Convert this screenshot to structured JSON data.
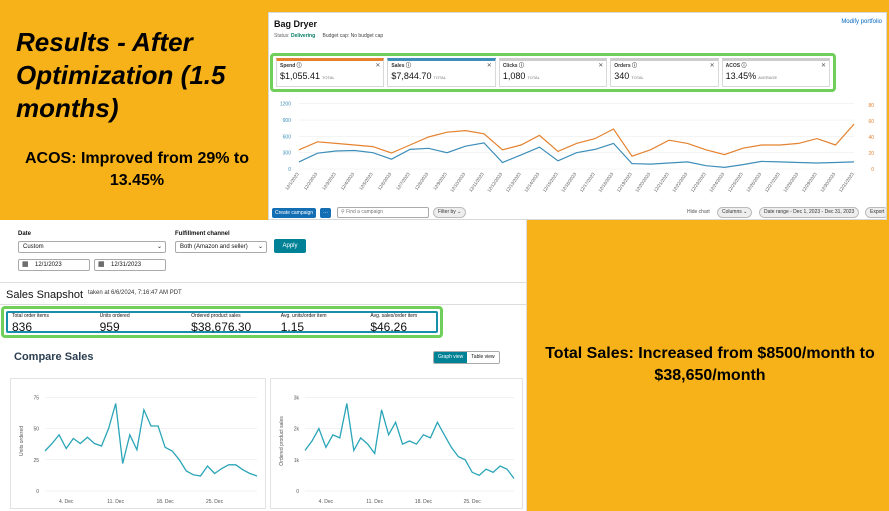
{
  "slide": {
    "headline": "Results - After Optimization (1.5 months)",
    "acos_note": "ACOS: Improved from 29% to 13.45%",
    "sales_note": "Total Sales: Increased from $8500/month to $38,650/month"
  },
  "ads": {
    "title": "Bag Dryer",
    "status_label": "Status:",
    "status_value": "Delivering",
    "budget_cap": "Budget cap: No budget cap",
    "modify_link": "Modify portfolio",
    "metrics": [
      {
        "label": "Spend ⓘ",
        "value": "$1,055.41",
        "sub": "TOTAL",
        "color": "#e4822f"
      },
      {
        "label": "Sales ⓘ",
        "value": "$7,844.70",
        "sub": "TOTAL",
        "color": "#3d8eb9"
      },
      {
        "label": "Clicks ⓘ",
        "value": "1,080",
        "sub": "TOTAL",
        "color": "#cccccc"
      },
      {
        "label": "Orders ⓘ",
        "value": "340",
        "sub": "TOTAL",
        "color": "#cccccc"
      },
      {
        "label": "ACOS ⓘ",
        "value": "13.45%",
        "sub": "AVERAGE",
        "color": "#cccccc"
      }
    ],
    "toolbar": {
      "create_label": "Create campaign",
      "more_label": "···",
      "find_placeholder": "Find a campaign",
      "filter_label": "Filter by ⌄",
      "hide_chart": "Hide chart",
      "columns_label": "Columns ⌄",
      "date_range_label": "Date range - Dec 1, 2023 - Dec 31, 2023",
      "export_label": "Export"
    }
  },
  "dash": {
    "date_label": "Date",
    "date_value": "Custom",
    "fulfillment_label": "Fulfillment channel",
    "fulfillment_value": "Both (Amazon and seller)",
    "start_date": "12/1/2023",
    "end_date": "12/31/2023",
    "apply_label": "Apply",
    "snapshot_title": "Sales Snapshot",
    "snapshot_time": "taken at 6/6/2024, 7:16:47 AM PDT",
    "snapshot": [
      {
        "label": "Total order items",
        "value": "836"
      },
      {
        "label": "Units ordered",
        "value": "959"
      },
      {
        "label": "Ordered product sales",
        "value": "$38,676.30"
      },
      {
        "label": "Avg. units/order item",
        "value": "1.15"
      },
      {
        "label": "Avg. sales/order item",
        "value": "$46.26"
      }
    ],
    "compare_title": "Compare Sales",
    "graph_view": "Graph view",
    "table_view": "Table view"
  },
  "chart_data": [
    {
      "type": "line",
      "x": [
        "12/1/2023",
        "12/2/2023",
        "12/3/2023",
        "12/4/2023",
        "12/5/2023",
        "12/6/2023",
        "12/7/2023",
        "12/8/2023",
        "12/9/2023",
        "12/10/2023",
        "12/11/2023",
        "12/12/2023",
        "12/13/2023",
        "12/14/2023",
        "12/15/2023",
        "12/16/2023",
        "12/17/2023",
        "12/18/2023",
        "12/19/2023",
        "12/20/2023",
        "12/21/2023",
        "12/22/2023",
        "12/23/2023",
        "12/24/2023",
        "12/25/2023",
        "12/26/2023",
        "12/27/2023",
        "12/28/2023",
        "12/29/2023",
        "12/30/2023",
        "12/31/2023"
      ],
      "xtick_labels": [
        "12/1/2023",
        "12/2/2023",
        "12/3/2023",
        "12/4/2023",
        "12/5/2023",
        "12/6/2023",
        "12/7/2023",
        "12/8/2023",
        "12/9/2023",
        "12/10/2023",
        "12/11/2023",
        "12/12/2023",
        "12/13/2023",
        "12/14/2023",
        "12/15/2023",
        "12/16/2023",
        "12/17/2023",
        "12/18/2023",
        "12/19/2023",
        "12/20/2023",
        "12/21/2023",
        "12/22/2023",
        "12/23/2023",
        "12/24/2023",
        "12/25/2023",
        "12/26/2023",
        "12/27/2023",
        "12/28/2023",
        "12/29/2023",
        "12/30/2023",
        "12/31/2023"
      ],
      "series": [
        {
          "axis": "left",
          "color": "#3d8eb9",
          "values": [
            130,
            290,
            330,
            340,
            300,
            180,
            360,
            380,
            300,
            420,
            480,
            120,
            260,
            400,
            150,
            300,
            360,
            470,
            100,
            90,
            110,
            130,
            60,
            30,
            80,
            140,
            130,
            120,
            110,
            120,
            130
          ]
        },
        {
          "axis": "right",
          "color": "#e4822f",
          "values": [
            24,
            34,
            32,
            30,
            28,
            20,
            30,
            40,
            46,
            48,
            44,
            24,
            30,
            42,
            22,
            32,
            38,
            50,
            16,
            24,
            36,
            32,
            24,
            18,
            26,
            30,
            30,
            32,
            38,
            30,
            56
          ]
        }
      ],
      "y_left_ticks": [
        0,
        300,
        600,
        900,
        1200
      ],
      "y_right_ticks": [
        0,
        20,
        40,
        60,
        80
      ],
      "ylim_left": [
        0,
        1250
      ],
      "ylim_right": [
        0,
        85
      ]
    },
    {
      "type": "line",
      "ylabel": "Units ordered",
      "y_ticks": [
        0,
        25,
        50,
        75
      ],
      "ylim": [
        0,
        80
      ],
      "xtick_labels": [
        "4. Dec",
        "11. Dec",
        "18. Dec",
        "25. Dec"
      ],
      "xtick_days": [
        4,
        11,
        18,
        25
      ],
      "x_days": [
        1,
        2,
        3,
        4,
        5,
        6,
        7,
        8,
        9,
        10,
        11,
        12,
        13,
        14,
        15,
        16,
        17,
        18,
        19,
        20,
        21,
        22,
        23,
        24,
        25,
        26,
        27,
        28,
        29,
        30,
        31
      ],
      "values": [
        32,
        38,
        45,
        34,
        42,
        38,
        43,
        38,
        36,
        50,
        70,
        22,
        45,
        33,
        65,
        52,
        52,
        35,
        32,
        25,
        16,
        13,
        12,
        20,
        14,
        18,
        21,
        21,
        17,
        14,
        12
      ]
    },
    {
      "type": "line",
      "ylabel": "Ordered product sales",
      "y_ticks": [
        0,
        1000,
        2000,
        3000
      ],
      "y_tick_labels": [
        "0",
        "1k",
        "2k",
        "3k"
      ],
      "ylim": [
        0,
        3200
      ],
      "xtick_labels": [
        "4. Dec",
        "11. Dec",
        "18. Dec",
        "25. Dec"
      ],
      "xtick_days": [
        4,
        11,
        18,
        25
      ],
      "x_days": [
        1,
        2,
        3,
        4,
        5,
        6,
        7,
        8,
        9,
        10,
        11,
        12,
        13,
        14,
        15,
        16,
        17,
        18,
        19,
        20,
        21,
        22,
        23,
        24,
        25,
        26,
        27,
        28,
        29,
        30,
        31
      ],
      "values": [
        1300,
        1600,
        2000,
        1400,
        1800,
        1700,
        2800,
        1300,
        1700,
        1500,
        1200,
        2600,
        1800,
        2200,
        1500,
        1600,
        1500,
        1800,
        1700,
        2200,
        1800,
        1400,
        1100,
        1000,
        600,
        500,
        700,
        600,
        800,
        700,
        400
      ]
    }
  ]
}
